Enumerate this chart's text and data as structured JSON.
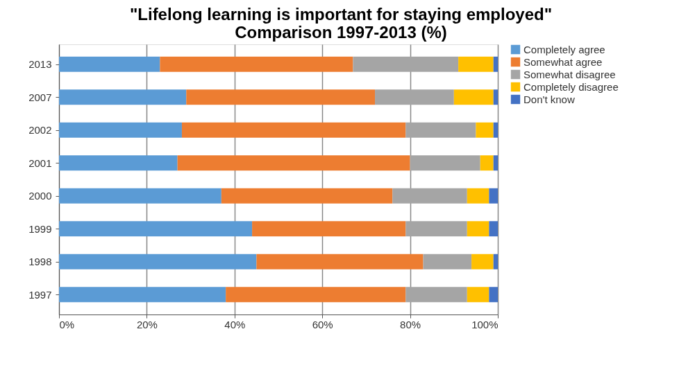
{
  "chart_data": {
    "type": "bar",
    "orientation": "horizontal",
    "stacked": true,
    "title": [
      "\"Lifelong learning is important for staying employed\"",
      "Comparison 1997-2013 (%)"
    ],
    "categories": [
      "2013",
      "2007",
      "2002",
      "2001",
      "2000",
      "1999",
      "1998",
      "1997"
    ],
    "series": [
      {
        "name": "Completely agree",
        "color": "#5b9bd5",
        "values": [
          23,
          29,
          28,
          27,
          37,
          44,
          45,
          38
        ]
      },
      {
        "name": "Somewhat agree",
        "color": "#ed7d31",
        "values": [
          44,
          43,
          51,
          53,
          39,
          35,
          38,
          41
        ]
      },
      {
        "name": "Somewhat disagree",
        "color": "#a5a5a5",
        "values": [
          24,
          18,
          16,
          16,
          17,
          14,
          11,
          14
        ]
      },
      {
        "name": "Completely disagree",
        "color": "#ffc000",
        "values": [
          8,
          9,
          4,
          3,
          5,
          5,
          5,
          5
        ]
      },
      {
        "name": "Don't know",
        "color": "#4472c4",
        "values": [
          1,
          1,
          1,
          1,
          2,
          2,
          1,
          2
        ]
      }
    ],
    "xlim": [
      0,
      100
    ],
    "xticks": [
      {
        "value": 0,
        "label": "0%"
      },
      {
        "value": 20,
        "label": "20%"
      },
      {
        "value": 40,
        "label": "40%"
      },
      {
        "value": 60,
        "label": "60%"
      },
      {
        "value": 80,
        "label": "80%"
      },
      {
        "value": 100,
        "label": "100%"
      }
    ],
    "grid": "x",
    "legend": "right"
  }
}
